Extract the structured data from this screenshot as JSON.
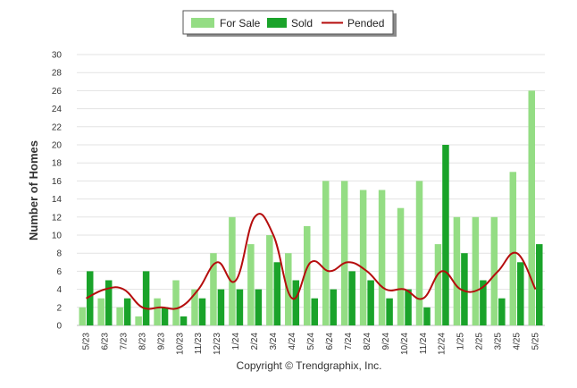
{
  "chart_data": {
    "type": "bar",
    "ylabel": "Number of Homes",
    "ylim": [
      0,
      30
    ],
    "yticks": [
      0,
      2,
      4,
      6,
      8,
      10,
      12,
      14,
      16,
      18,
      20,
      22,
      24,
      26,
      28,
      30
    ],
    "grid": true,
    "legend_position": "top-center",
    "categories": [
      "5/23",
      "6/23",
      "7/23",
      "8/23",
      "9/23",
      "10/23",
      "11/23",
      "12/23",
      "1/24",
      "2/24",
      "3/24",
      "4/24",
      "5/24",
      "6/24",
      "7/24",
      "8/24",
      "9/24",
      "10/24",
      "11/24",
      "12/24",
      "1/25",
      "2/25",
      "3/25",
      "4/25",
      "5/25"
    ],
    "series": [
      {
        "name": "For Sale",
        "kind": "bar",
        "color": "#94dd84",
        "values": [
          2,
          3,
          2,
          1,
          3,
          5,
          4,
          8,
          12,
          9,
          10,
          8,
          11,
          16,
          16,
          15,
          15,
          13,
          16,
          9,
          12,
          12,
          12,
          17,
          26
        ]
      },
      {
        "name": "Sold",
        "kind": "bar",
        "color": "#1aa32a",
        "values": [
          6,
          5,
          3,
          6,
          2,
          1,
          3,
          4,
          4,
          4,
          7,
          5,
          3,
          4,
          6,
          5,
          3,
          4,
          2,
          20,
          8,
          5,
          3,
          7,
          9
        ]
      },
      {
        "name": "Pended",
        "kind": "line",
        "color": "#b50d0d",
        "values": [
          3,
          4,
          4,
          2,
          2,
          2,
          4,
          7,
          5,
          12,
          10,
          3,
          7,
          6,
          7,
          6,
          4,
          4,
          3,
          6,
          4,
          4,
          6,
          8,
          4
        ]
      }
    ]
  },
  "footer": {
    "copyright": "Copyright © Trendgraphix, Inc."
  }
}
